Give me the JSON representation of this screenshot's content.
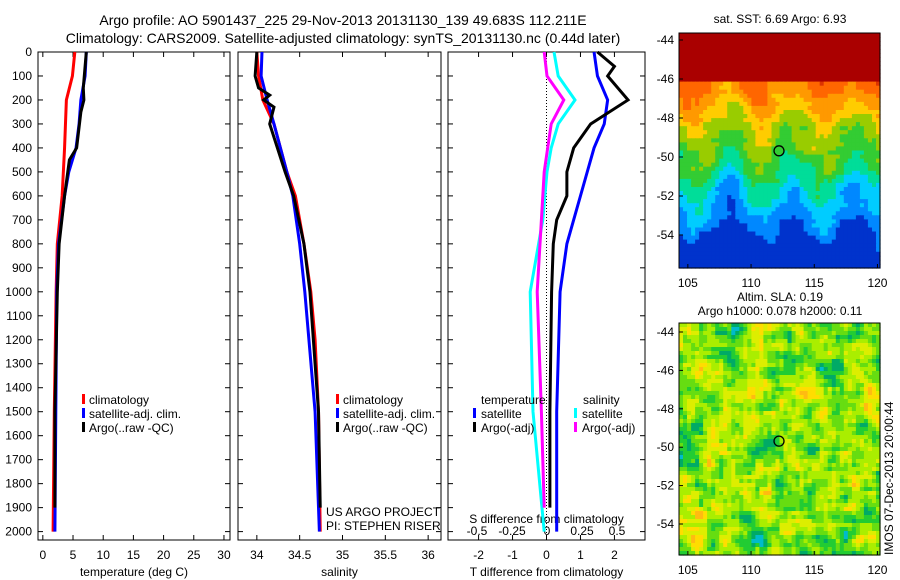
{
  "chart_data": [
    {
      "type": "line",
      "id": "temp",
      "xlabel": "temperature (deg C)",
      "xlim": [
        -0.8,
        31
      ],
      "xticks": [
        0,
        5,
        10,
        15,
        20,
        25,
        30
      ],
      "ylim": [
        2035,
        0
      ],
      "yticks": [
        0,
        100,
        200,
        300,
        400,
        500,
        600,
        700,
        800,
        900,
        1000,
        1100,
        1200,
        1300,
        1400,
        1500,
        1600,
        1700,
        1800,
        1900,
        2000
      ],
      "legend": [
        "climatology",
        "satellite-adj. clim.",
        "Argo(..raw -QC)"
      ],
      "series": [
        {
          "name": "climatology",
          "color": "#ff0000",
          "depth": [
            0,
            100,
            200,
            400,
            600,
            800,
            1000,
            1500,
            2000
          ],
          "values": [
            5.3,
            4.9,
            3.9,
            3.6,
            3.2,
            2.4,
            2.2,
            1.9,
            1.7
          ]
        },
        {
          "name": "satellite-adj. clim.",
          "color": "#0000ff",
          "depth": [
            0,
            100,
            200,
            300,
            400,
            500,
            600,
            800,
            1000,
            2000
          ],
          "values": [
            7.2,
            7.0,
            6.3,
            6.0,
            5.5,
            4.3,
            3.6,
            2.6,
            2.3,
            2.0
          ]
        },
        {
          "name": "Argo(..raw -QC)",
          "color": "#000000",
          "depth": [
            0,
            150,
            200,
            250,
            400,
            450,
            600,
            800,
            1000,
            1500,
            1900
          ],
          "values": [
            7.2,
            6.7,
            6.8,
            6.3,
            5.6,
            4.4,
            3.6,
            2.7,
            2.4,
            2.0,
            2.0
          ]
        }
      ]
    },
    {
      "type": "line",
      "id": "sal",
      "xlabel": "salinity",
      "xlim": [
        33.78,
        36.15
      ],
      "xticks": [
        34,
        34.5,
        35,
        35.5,
        36
      ],
      "ylim": [
        2035,
        0
      ],
      "legend": [
        "climatology",
        "satellite-adj. clim.",
        "Argo(..raw -QC)"
      ],
      "annotation": [
        "US ARGO PROJECT",
        "PI: STEPHEN RISER"
      ],
      "series": [
        {
          "name": "climatology",
          "color": "#ff0000",
          "depth": [
            0,
            100,
            200,
            300,
            500,
            600,
            800,
            1000,
            1200,
            1500,
            2000
          ],
          "values": [
            34.0,
            34.02,
            34.07,
            34.2,
            34.35,
            34.45,
            34.55,
            34.63,
            34.68,
            34.72,
            34.74
          ]
        },
        {
          "name": "satellite-adj. clim.",
          "color": "#0000ff",
          "depth": [
            0,
            100,
            200,
            300,
            500,
            600,
            800,
            1000,
            1500,
            2000
          ],
          "values": [
            34.06,
            34.05,
            34.12,
            34.2,
            34.35,
            34.42,
            34.5,
            34.56,
            34.68,
            34.73
          ]
        },
        {
          "name": "Argo(..raw -QC)",
          "color": "#000000",
          "depth": [
            0,
            100,
            150,
            180,
            200,
            230,
            300,
            500,
            600,
            800,
            1000,
            1500,
            1900
          ],
          "values": [
            34.0,
            33.98,
            34.02,
            34.15,
            34.08,
            34.2,
            34.15,
            34.33,
            34.43,
            34.55,
            34.62,
            34.72,
            34.74
          ]
        }
      ]
    },
    {
      "type": "line",
      "id": "diff",
      "xlabel": "T difference from climatology",
      "x2label": "S difference from climatology",
      "xlim": [
        -2.9,
        2.9
      ],
      "xticks": [
        -2,
        -1,
        0,
        1,
        2
      ],
      "x2ticks": [
        -0.5,
        -0.25,
        0,
        0.25,
        0.5
      ],
      "x2ticklabels": [
        "-0.5",
        "-0.25",
        "0",
        "0.25",
        "0.5"
      ],
      "ylim": [
        2035,
        0
      ],
      "legend_headers": [
        "temperature",
        "salinity"
      ],
      "legend": [
        "satellite",
        "Argo(-adj)",
        "satellite",
        "Argo(-adj)"
      ],
      "series": [
        {
          "name": "T satellite",
          "color": "#0000ff",
          "scale": "T",
          "depth": [
            0,
            100,
            200,
            300,
            400,
            500,
            600,
            800,
            1000,
            1500,
            2000
          ],
          "values": [
            1.4,
            1.5,
            1.8,
            1.7,
            1.4,
            1.2,
            1.0,
            0.6,
            0.4,
            0.3,
            0.3
          ]
        },
        {
          "name": "T Argo(-adj)",
          "color": "#000000",
          "scale": "T",
          "depth": [
            0,
            60,
            100,
            200,
            300,
            400,
            500,
            600,
            700,
            800,
            1000,
            1500,
            1900
          ],
          "values": [
            1.5,
            2.0,
            1.8,
            2.4,
            1.3,
            0.8,
            0.6,
            0.6,
            0.3,
            0.2,
            0.15,
            0.1,
            0.1
          ]
        },
        {
          "name": "S satellite",
          "color": "#00ffff",
          "scale": "S",
          "depth": [
            0,
            100,
            200,
            300,
            400,
            500,
            700,
            1000,
            1500,
            2000
          ],
          "values": [
            0.05,
            0.08,
            0.2,
            0.08,
            0.03,
            0.0,
            -0.03,
            -0.12,
            -0.1,
            -0.02
          ]
        },
        {
          "name": "S Argo(-adj)",
          "color": "#ff00ff",
          "scale": "S",
          "depth": [
            0,
            100,
            200,
            300,
            500,
            1000,
            1500,
            1900
          ],
          "values": [
            -0.02,
            0.0,
            0.12,
            0.03,
            -0.02,
            -0.07,
            -0.04,
            -0.02
          ]
        }
      ]
    },
    {
      "type": "heatmap",
      "id": "sst",
      "title": "sat. SST: 6.69 Argo: 6.93",
      "xlim": [
        104.3,
        120.2
      ],
      "ylim": [
        -55.7,
        -43.6
      ],
      "xticks": [
        105,
        110,
        115,
        120
      ],
      "yticks": [
        -44,
        -46,
        -48,
        -50,
        -52,
        -54
      ],
      "marker": {
        "lon": 112.211,
        "lat": -49.683
      }
    },
    {
      "type": "heatmap",
      "id": "sla",
      "title": [
        "Altim. SLA: 0.19",
        "Argo h1000: 0.078 h2000: 0.11"
      ],
      "side_label": "IMOS 07-Dec-2013 20:00:44",
      "xlim": [
        104.3,
        120.2
      ],
      "ylim": [
        -55.7,
        -43.6
      ],
      "xticks": [
        105,
        110,
        115,
        120
      ],
      "yticks": [
        -44,
        -46,
        -48,
        -50,
        -52,
        -54
      ],
      "marker": {
        "lon": 112.211,
        "lat": -49.683
      }
    }
  ],
  "header": {
    "line1": "Argo profile: AO 5901437_225 29-Nov-2013 20131130_139 49.683S 112.211E",
    "line2": "Climatology: CARS2009. Satellite-adjusted climatology: synTS_20131130.nc (0.44d later)"
  }
}
